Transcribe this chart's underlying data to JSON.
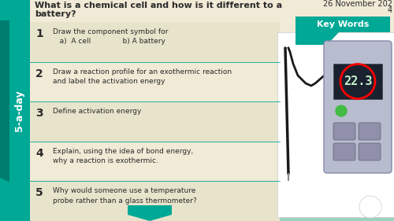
{
  "bg_color": "#f0ead6",
  "teal_color": "#00a896",
  "teal_dark": "#007d6e",
  "title_line1": "What is a chemical cell and how is it different to a",
  "title_line2": "battery?",
  "date_line1": "26 November 202",
  "date_line2": "4",
  "key_words": "Key Words",
  "sidebar_label": "5-a-day",
  "questions": [
    {
      "num": "1",
      "text": "Draw the component symbol for\n   a)  A cell              b) A battery"
    },
    {
      "num": "2",
      "text": "Draw a reaction profile for an exothermic reaction\nand label the activation energy"
    },
    {
      "num": "3",
      "text": "Define activation energy"
    },
    {
      "num": "4",
      "text": "Explain, using the idea of bond energy,\nwhy a reaction is exothermic."
    },
    {
      "num": "5",
      "text": "Why would someone use a temperature\nprobe rather than a glass thermometer?"
    }
  ],
  "separator_color": "#00a896",
  "text_color": "#2a2a2a",
  "row_colors": [
    "#e8e4cc",
    "#f0ead6",
    "#e8e4cc",
    "#f0ead6",
    "#e8e4cc"
  ]
}
